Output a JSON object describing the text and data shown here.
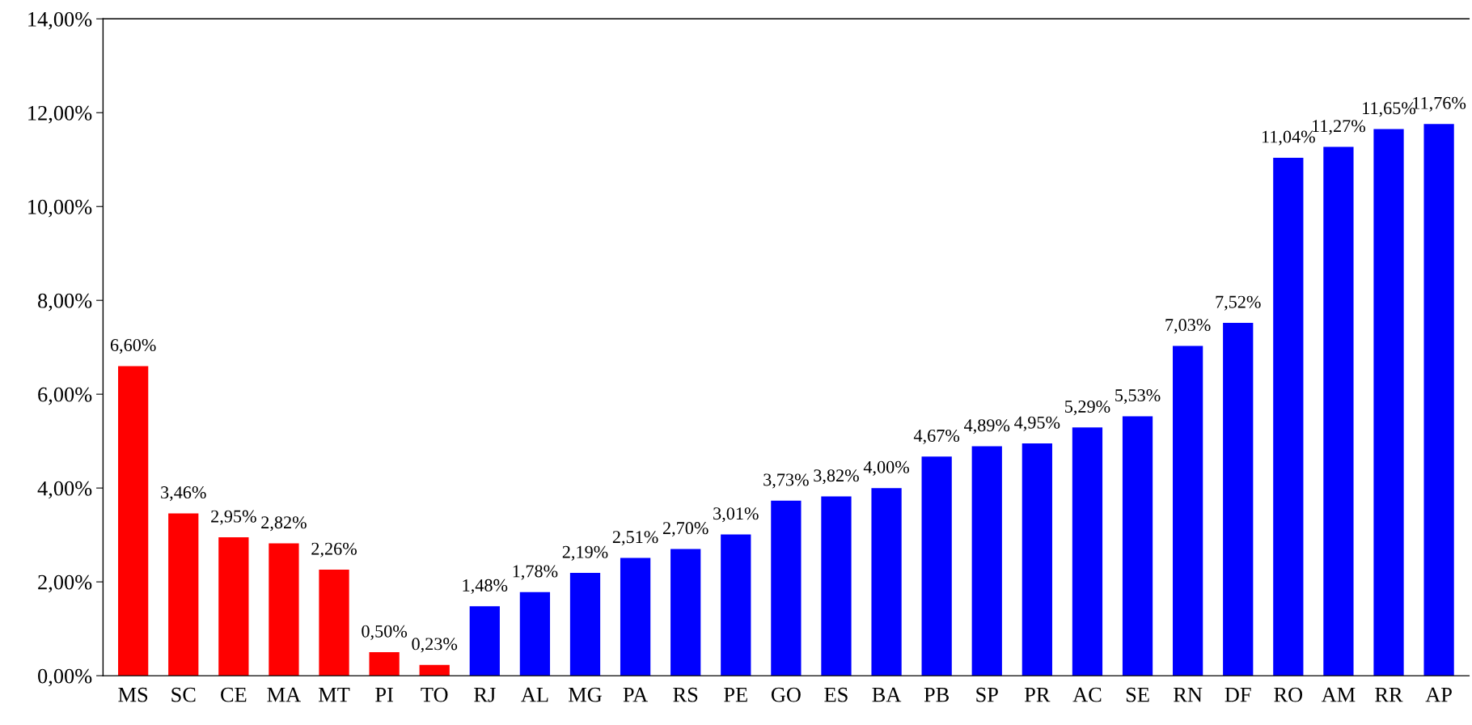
{
  "chart_data": {
    "type": "bar",
    "categories": [
      "MS",
      "SC",
      "CE",
      "MA",
      "MT",
      "PI",
      "TO",
      "RJ",
      "AL",
      "MG",
      "PA",
      "RS",
      "PE",
      "GO",
      "ES",
      "BA",
      "PB",
      "SP",
      "PR",
      "AC",
      "SE",
      "RN",
      "DF",
      "RO",
      "AM",
      "RR",
      "AP"
    ],
    "values": [
      6.6,
      3.46,
      2.95,
      2.82,
      2.26,
      0.5,
      0.23,
      1.48,
      1.78,
      2.19,
      2.51,
      2.7,
      3.01,
      3.73,
      3.82,
      4.0,
      4.67,
      4.89,
      4.95,
      5.29,
      5.53,
      7.03,
      7.52,
      11.04,
      11.27,
      11.65,
      11.76
    ],
    "colors": [
      "#ff0000",
      "#ff0000",
      "#ff0000",
      "#ff0000",
      "#ff0000",
      "#ff0000",
      "#ff0000",
      "#0000ff",
      "#0000ff",
      "#0000ff",
      "#0000ff",
      "#0000ff",
      "#0000ff",
      "#0000ff",
      "#0000ff",
      "#0000ff",
      "#0000ff",
      "#0000ff",
      "#0000ff",
      "#0000ff",
      "#0000ff",
      "#0000ff",
      "#0000ff",
      "#0000ff",
      "#0000ff",
      "#0000ff",
      "#0000ff"
    ],
    "value_labels": [
      "6,60%",
      "3,46%",
      "2,95%",
      "2,82%",
      "2,26%",
      "0,50%",
      "0,23%",
      "1,48%",
      "1,78%",
      "2,19%",
      "2,51%",
      "2,70%",
      "3,01%",
      "3,73%",
      "3,82%",
      "4,00%",
      "4,67%",
      "4,89%",
      "4,95%",
      "5,29%",
      "5,53%",
      "7,03%",
      "7,52%",
      "11,04%",
      "11,27%",
      "11,65%",
      "11,76%"
    ],
    "ylim": [
      0,
      14
    ],
    "yticks": [
      {
        "value": 0,
        "label": "0,00%"
      },
      {
        "value": 2,
        "label": "2,00%"
      },
      {
        "value": 4,
        "label": "4,00%"
      },
      {
        "value": 6,
        "label": "6,00%"
      },
      {
        "value": 8,
        "label": "8,00%"
      },
      {
        "value": 10,
        "label": "10,00%"
      },
      {
        "value": 12,
        "label": "12,00%"
      },
      {
        "value": 14,
        "label": "14,00%"
      }
    ],
    "grid": false,
    "legend": false
  }
}
